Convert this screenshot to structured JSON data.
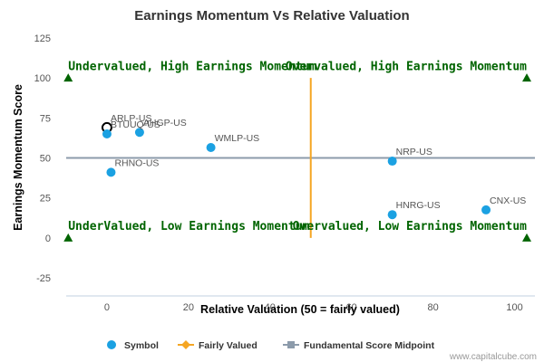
{
  "chart_data": {
    "type": "scatter",
    "title": "Earnings Momentum Vs Relative Valuation",
    "xlabel": "Relative Valuation (50 = fairly valued)",
    "ylabel": "Earnings Momentum Score",
    "xlim": [
      -10,
      105
    ],
    "ylim": [
      -25,
      125
    ],
    "xticks": [
      0,
      20,
      40,
      60,
      80,
      100
    ],
    "yticks": [
      -25,
      0,
      25,
      50,
      75,
      100,
      125
    ],
    "grid": false,
    "legend_position": "bottom",
    "colors": {
      "symbol": "#1ba1e2",
      "fairly_valued": "#f5a623",
      "midpoint": "#8c9bab",
      "quadrant_text": "#006400",
      "marker": "#006400"
    },
    "series": [
      {
        "name": "Symbol",
        "points": [
          {
            "label": "ARLP-US",
            "x": 0,
            "y": 69,
            "highlighted": true
          },
          {
            "label": "BTUUQ-US",
            "x": 0,
            "y": 65
          },
          {
            "label": "AHGP-US",
            "x": 8,
            "y": 66
          },
          {
            "label": "WMLP-US",
            "x": 25.5,
            "y": 56.5
          },
          {
            "label": "RHNO-US",
            "x": 1,
            "y": 41
          },
          {
            "label": "NRP-US",
            "x": 70,
            "y": 48
          },
          {
            "label": "HNRG-US",
            "x": 70,
            "y": 14.5
          },
          {
            "label": "CNX-US",
            "x": 93,
            "y": 17.5
          }
        ]
      },
      {
        "name": "Fairly Valued",
        "points": [
          {
            "x": 50,
            "y": 0
          },
          {
            "x": 50,
            "y": 100
          }
        ]
      },
      {
        "name": "Fundamental Score Midpoint",
        "points": [
          {
            "x": -10,
            "y": 50
          },
          {
            "x": 105,
            "y": 50
          }
        ]
      }
    ],
    "corner_markers": [
      {
        "x": -9.5,
        "y": 100
      },
      {
        "x": 103,
        "y": 100
      },
      {
        "x": -9.5,
        "y": 0
      },
      {
        "x": 103,
        "y": 0
      }
    ],
    "annotations": [
      {
        "text": "Undervalued, High Earnings Momentum",
        "x": -9.5,
        "y": 105,
        "anchor": "start"
      },
      {
        "text": "Overvalued, High Earnings Momentum",
        "x": 103,
        "y": 105,
        "anchor": "end"
      },
      {
        "text": "UnderValued, Low Earnings Momentum",
        "x": -9.5,
        "y": 5,
        "anchor": "start"
      },
      {
        "text": "Overvalued, Low Earnings Momentum",
        "x": 103,
        "y": 5,
        "anchor": "end"
      }
    ],
    "credit": "www.capitalcube.com"
  }
}
